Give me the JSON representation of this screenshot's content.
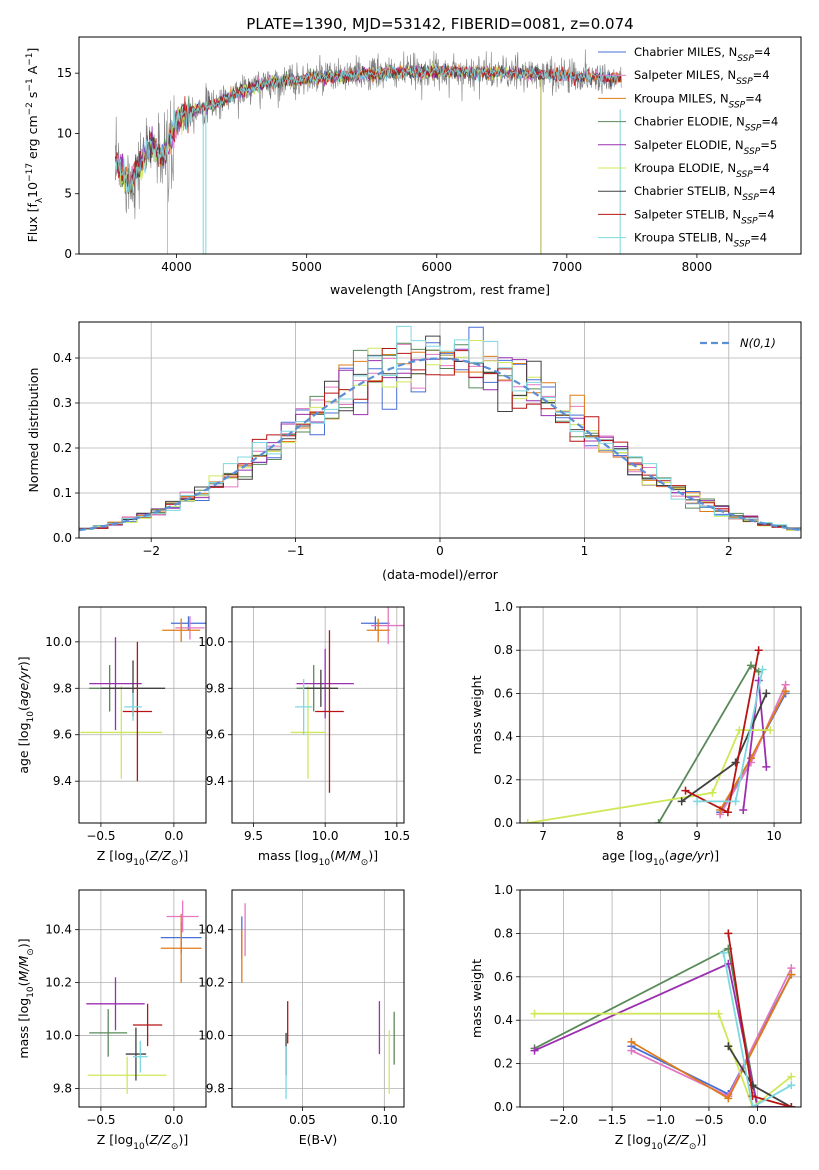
{
  "title": "PLATE=1390, MJD=53142, FIBERID=0081, z=0.074",
  "colors": {
    "chabrier_miles": "#4a6fd6",
    "salpeter_miles": "#e377c2",
    "kroupa_miles": "#e07b1a",
    "chabrier_elodie": "#5a8a5a",
    "salpeter_elodie": "#9b2fb0",
    "kroupa_elodie": "#cfe85a",
    "chabrier_stelib": "#404040",
    "salpeter_stelib": "#b81414",
    "kroupa_stelib": "#7dd8e0",
    "normal_curve": "#5b8fd6"
  },
  "chart_data": [
    {
      "id": "spectrum",
      "type": "line",
      "xlabel": "wavelength [Angstrom, rest frame]",
      "ylabel": "Flux [f_λ10^-17 erg cm^-2 s^-1 A^-1]",
      "xlim": [
        3250,
        8800
      ],
      "ylim": [
        0,
        18
      ],
      "xticks": [
        4000,
        5000,
        6000,
        7000,
        8000
      ],
      "yticks": [
        0,
        5,
        10,
        15
      ],
      "legend_position": "upper-right",
      "legend": [
        {
          "base": "Chabrier MILES, N",
          "sub": "SSP",
          "tail": "=4",
          "color_key": "chabrier_miles"
        },
        {
          "base": "Salpeter MILES, N",
          "sub": "SSP",
          "tail": "=4",
          "color_key": "salpeter_miles"
        },
        {
          "base": "Kroupa MILES, N",
          "sub": "SSP",
          "tail": "=4",
          "color_key": "kroupa_miles"
        },
        {
          "base": "Chabrier ELODIE, N",
          "sub": "SSP",
          "tail": "=4",
          "color_key": "chabrier_elodie"
        },
        {
          "base": "Salpeter ELODIE, N",
          "sub": "SSP",
          "tail": "=5",
          "color_key": "salpeter_elodie"
        },
        {
          "base": "Kroupa ELODIE, N",
          "sub": "SSP",
          "tail": "=4",
          "color_key": "kroupa_elodie"
        },
        {
          "base": "Chabrier STELIB, N",
          "sub": "SSP",
          "tail": "=4",
          "color_key": "chabrier_stelib"
        },
        {
          "base": "Salpeter STELIB, N",
          "sub": "SSP",
          "tail": "=4",
          "color_key": "salpeter_stelib"
        },
        {
          "base": "Kroupa STELIB, N",
          "sub": "SSP",
          "tail": "=4",
          "color_key": "kroupa_stelib"
        }
      ],
      "data_envelope": {
        "x": [
          3530,
          3650,
          3800,
          3900,
          4000,
          4100,
          4300,
          4500,
          4700,
          5000,
          5300,
          5600,
          5900,
          6200,
          6500,
          6800,
          7000,
          7200,
          7420
        ],
        "y": [
          7.5,
          6.0,
          9.0,
          8.0,
          11.0,
          11.8,
          12.5,
          13.5,
          14.2,
          14.5,
          14.8,
          15.0,
          15.1,
          15.1,
          15.0,
          14.9,
          14.8,
          14.7,
          14.6
        ]
      },
      "model_elodie_end": 6800
    },
    {
      "id": "residual_histogram",
      "type": "bar",
      "xlabel": "(data-model)/error",
      "ylabel": "Normed distribution",
      "xlim": [
        -2.5,
        2.5
      ],
      "ylim": [
        0,
        0.48
      ],
      "xticks": [
        -2,
        -1,
        0,
        1,
        2
      ],
      "yticks": [
        0.0,
        0.1,
        0.2,
        0.3,
        0.4
      ],
      "legend_label": "N(0,1)",
      "legend_position": "upper-right",
      "bin_width": 0.1,
      "bin_start": -2.5
    },
    {
      "id": "age_vs_Z",
      "type": "scatter",
      "xlabel": "Z [log10(Z/Z⊙)]",
      "ylabel": "age [log10(age/yr)]",
      "xlim": [
        -0.65,
        0.22
      ],
      "ylim": [
        9.22,
        10.15
      ],
      "xticks": [
        -0.5,
        0.0
      ],
      "yticks": [
        9.4,
        9.6,
        9.8,
        10.0
      ],
      "points": [
        {
          "color_key": "chabrier_miles",
          "x": 0.1,
          "y": 10.08,
          "xerr": 0.12,
          "yerr": 0.03
        },
        {
          "color_key": "salpeter_miles",
          "x": 0.11,
          "y": 10.06,
          "xerr": 0.1,
          "yerr": 0.05
        },
        {
          "color_key": "kroupa_miles",
          "x": 0.05,
          "y": 10.05,
          "xerr": 0.13,
          "yerr": 0.05
        },
        {
          "color_key": "chabrier_elodie",
          "x": -0.44,
          "y": 9.8,
          "xerr": 0.14,
          "yerr": 0.1
        },
        {
          "color_key": "salpeter_elodie",
          "x": -0.4,
          "y": 9.82,
          "xerr": 0.18,
          "yerr": 0.2
        },
        {
          "color_key": "kroupa_elodie",
          "x": -0.36,
          "y": 9.61,
          "xerr": 0.28,
          "yerr": 0.2
        },
        {
          "color_key": "chabrier_stelib",
          "x": -0.28,
          "y": 9.8,
          "xerr": 0.22,
          "yerr": 0.12
        },
        {
          "color_key": "salpeter_stelib",
          "x": -0.25,
          "y": 9.7,
          "xerr": 0.1,
          "yerr": 0.3
        },
        {
          "color_key": "kroupa_stelib",
          "x": -0.28,
          "y": 9.72,
          "xerr": 0.06,
          "yerr": 0.06
        }
      ]
    },
    {
      "id": "age_vs_mass",
      "type": "scatter",
      "xlabel": "mass [log10(M/M⊙)]",
      "ylabel": "",
      "xlim": [
        9.35,
        10.55
      ],
      "ylim": [
        9.22,
        10.15
      ],
      "xticks": [
        9.5,
        10.0,
        10.5
      ],
      "yticks": [
        9.4,
        9.6,
        9.8,
        10.0
      ],
      "points": [
        {
          "color_key": "chabrier_miles",
          "x": 10.35,
          "y": 10.08,
          "xerr": 0.1,
          "yerr": 0.03
        },
        {
          "color_key": "salpeter_miles",
          "x": 10.44,
          "y": 10.07,
          "xerr": 0.12,
          "yerr": 0.08
        },
        {
          "color_key": "kroupa_miles",
          "x": 10.37,
          "y": 10.05,
          "xerr": 0.08,
          "yerr": 0.05
        },
        {
          "color_key": "chabrier_elodie",
          "x": 9.92,
          "y": 9.8,
          "xerr": 0.12,
          "yerr": 0.1
        },
        {
          "color_key": "salpeter_elodie",
          "x": 10.0,
          "y": 9.82,
          "xerr": 0.2,
          "yerr": 0.15
        },
        {
          "color_key": "kroupa_elodie",
          "x": 9.88,
          "y": 9.61,
          "xerr": 0.12,
          "yerr": 0.2
        },
        {
          "color_key": "chabrier_stelib",
          "x": 9.97,
          "y": 9.8,
          "xerr": 0.12,
          "yerr": 0.08
        },
        {
          "color_key": "salpeter_stelib",
          "x": 10.03,
          "y": 9.7,
          "xerr": 0.1,
          "yerr": 0.35
        },
        {
          "color_key": "kroupa_stelib",
          "x": 9.85,
          "y": 9.72,
          "xerr": 0.06,
          "yerr": 0.12
        }
      ]
    },
    {
      "id": "massweight_vs_age",
      "type": "line",
      "xlabel": "age [log10(age/yr)]",
      "ylabel": "mass weight",
      "xlim": [
        6.7,
        10.35
      ],
      "ylim": [
        0,
        1
      ],
      "xticks": [
        7,
        8,
        9,
        10
      ],
      "yticks": [
        0.0,
        0.2,
        0.4,
        0.6,
        0.8,
        1.0
      ],
      "series": [
        {
          "color_key": "chabrier_miles",
          "x": [
            9.3,
            9.7,
            10.15
          ],
          "y": [
            0.05,
            0.3,
            0.6
          ]
        },
        {
          "color_key": "salpeter_miles",
          "x": [
            9.3,
            9.7,
            10.15
          ],
          "y": [
            0.04,
            0.28,
            0.64
          ]
        },
        {
          "color_key": "kroupa_miles",
          "x": [
            9.3,
            9.7,
            10.15
          ],
          "y": [
            0.06,
            0.3,
            0.61
          ]
        },
        {
          "color_key": "chabrier_elodie",
          "x": [
            8.5,
            9.7,
            9.8
          ],
          "y": [
            0.0,
            0.73,
            0.7
          ]
        },
        {
          "color_key": "salpeter_elodie",
          "x": [
            9.6,
            9.8,
            9.9
          ],
          "y": [
            0.06,
            0.66,
            0.26
          ]
        },
        {
          "color_key": "kroupa_elodie",
          "x": [
            6.8,
            9.2,
            9.55,
            9.95
          ],
          "y": [
            0.0,
            0.14,
            0.43,
            0.43
          ]
        },
        {
          "color_key": "chabrier_stelib",
          "x": [
            8.8,
            9.5,
            9.9
          ],
          "y": [
            0.1,
            0.28,
            0.6
          ]
        },
        {
          "color_key": "salpeter_stelib",
          "x": [
            8.85,
            9.4,
            9.8
          ],
          "y": [
            0.15,
            0.05,
            0.8
          ]
        },
        {
          "color_key": "kroupa_stelib",
          "x": [
            9.0,
            9.5,
            9.85
          ],
          "y": [
            0.1,
            0.1,
            0.71
          ]
        }
      ]
    },
    {
      "id": "mass_vs_Z",
      "type": "scatter",
      "xlabel": "Z [log10(Z/Z⊙)]",
      "ylabel": "mass [log10(M/M⊙)]",
      "xlim": [
        -0.65,
        0.22
      ],
      "ylim": [
        9.73,
        10.55
      ],
      "xticks": [
        -0.5,
        0.0
      ],
      "yticks": [
        9.8,
        10.0,
        10.2,
        10.4
      ],
      "points": [
        {
          "color_key": "chabrier_miles",
          "x": 0.05,
          "y": 10.37,
          "xerr": 0.14,
          "yerr": 0.06
        },
        {
          "color_key": "salpeter_miles",
          "x": 0.06,
          "y": 10.45,
          "xerr": 0.11,
          "yerr": 0.06
        },
        {
          "color_key": "kroupa_miles",
          "x": 0.05,
          "y": 10.33,
          "xerr": 0.14,
          "yerr": 0.13
        },
        {
          "color_key": "chabrier_elodie",
          "x": -0.45,
          "y": 10.01,
          "xerr": 0.13,
          "yerr": 0.09
        },
        {
          "color_key": "salpeter_elodie",
          "x": -0.4,
          "y": 10.12,
          "xerr": 0.2,
          "yerr": 0.1
        },
        {
          "color_key": "kroupa_elodie",
          "x": -0.32,
          "y": 9.85,
          "xerr": 0.27,
          "yerr": 0.07
        },
        {
          "color_key": "chabrier_stelib",
          "x": -0.26,
          "y": 9.93,
          "xerr": 0.07,
          "yerr": 0.1
        },
        {
          "color_key": "salpeter_stelib",
          "x": -0.18,
          "y": 10.04,
          "xerr": 0.1,
          "yerr": 0.08
        },
        {
          "color_key": "kroupa_stelib",
          "x": -0.23,
          "y": 9.92,
          "xerr": 0.05,
          "yerr": 0.06
        }
      ]
    },
    {
      "id": "mass_vs_EBV",
      "type": "scatter",
      "xlabel": "E(B-V)",
      "ylabel": "",
      "xlim": [
        0.007,
        0.112
      ],
      "ylim": [
        9.73,
        10.55
      ],
      "xticks": [
        0.05,
        0.1
      ],
      "yticks": [
        9.8,
        10.0,
        10.2,
        10.4
      ],
      "points": [
        {
          "color_key": "chabrier_miles",
          "x": 0.013,
          "y": 10.37,
          "yerr": 0.08
        },
        {
          "color_key": "salpeter_miles",
          "x": 0.015,
          "y": 10.4,
          "yerr": 0.1
        },
        {
          "color_key": "kroupa_miles",
          "x": 0.013,
          "y": 10.3,
          "yerr": 0.1
        },
        {
          "color_key": "chabrier_elodie",
          "x": 0.106,
          "y": 9.99,
          "yerr": 0.1
        },
        {
          "color_key": "salpeter_elodie",
          "x": 0.097,
          "y": 10.03,
          "yerr": 0.1
        },
        {
          "color_key": "kroupa_elodie",
          "x": 0.103,
          "y": 9.9,
          "yerr": 0.12
        },
        {
          "color_key": "chabrier_stelib",
          "x": 0.04,
          "y": 9.93,
          "yerr": 0.08
        },
        {
          "color_key": "salpeter_stelib",
          "x": 0.041,
          "y": 10.05,
          "yerr": 0.08
        },
        {
          "color_key": "kroupa_stelib",
          "x": 0.04,
          "y": 9.86,
          "yerr": 0.1
        }
      ]
    },
    {
      "id": "massweight_vs_Z",
      "type": "line",
      "xlabel": "Z [log10(Z/Z⊙)]",
      "ylabel": "mass weight",
      "xlim": [
        -2.45,
        0.45
      ],
      "ylim": [
        0,
        1
      ],
      "xticks": [
        -2.0,
        -1.5,
        -1.0,
        -0.5,
        0.0
      ],
      "yticks": [
        0.0,
        0.2,
        0.4,
        0.6,
        0.8,
        1.0
      ],
      "series": [
        {
          "color_key": "chabrier_miles",
          "x": [
            -1.3,
            -0.3,
            0.35
          ],
          "y": [
            0.28,
            0.06,
            0.61
          ]
        },
        {
          "color_key": "salpeter_miles",
          "x": [
            -1.3,
            -0.3,
            0.35
          ],
          "y": [
            0.26,
            0.05,
            0.64
          ]
        },
        {
          "color_key": "kroupa_miles",
          "x": [
            -1.3,
            -0.3,
            0.35
          ],
          "y": [
            0.3,
            0.04,
            0.61
          ]
        },
        {
          "color_key": "chabrier_elodie",
          "x": [
            -2.3,
            -0.3,
            0.0,
            0.35
          ],
          "y": [
            0.27,
            0.73,
            0.0,
            0.0
          ]
        },
        {
          "color_key": "salpeter_elodie",
          "x": [
            -2.3,
            -0.3,
            0.0,
            0.35
          ],
          "y": [
            0.26,
            0.66,
            0.0,
            0.0
          ]
        },
        {
          "color_key": "kroupa_elodie",
          "x": [
            -2.3,
            -0.4,
            -0.05,
            0.35
          ],
          "y": [
            0.43,
            0.43,
            0.0,
            0.14
          ]
        },
        {
          "color_key": "chabrier_stelib",
          "x": [
            -0.3,
            -0.05,
            0.35
          ],
          "y": [
            0.28,
            0.1,
            0.0
          ]
        },
        {
          "color_key": "salpeter_stelib",
          "x": [
            -0.3,
            -0.05,
            0.35
          ],
          "y": [
            0.8,
            0.05,
            0.0
          ]
        },
        {
          "color_key": "kroupa_stelib",
          "x": [
            -0.35,
            -0.05,
            0.35
          ],
          "y": [
            0.71,
            0.0,
            0.1
          ]
        }
      ]
    }
  ]
}
